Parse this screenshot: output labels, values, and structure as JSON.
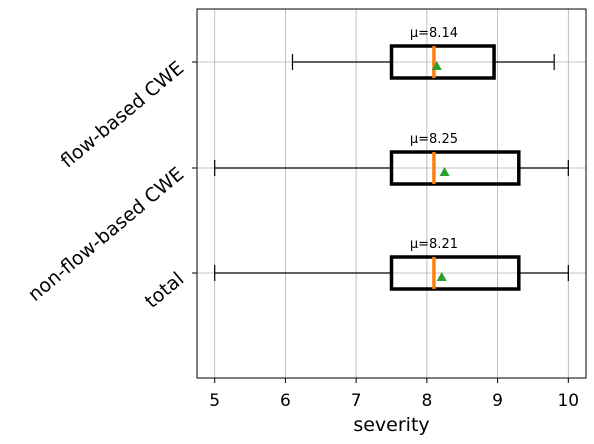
{
  "chart_data": {
    "type": "box",
    "orientation": "horizontal",
    "title": "",
    "xlabel": "severity",
    "ylabel": "",
    "xlim": [
      4.75,
      10.25
    ],
    "xticks": [
      5,
      6,
      7,
      8,
      9,
      10
    ],
    "xtick_labels": [
      "5",
      "6",
      "7",
      "8",
      "9",
      "10"
    ],
    "grid": true,
    "categories": [
      "flow-based CWE",
      "non-flow-based CWE",
      "total"
    ],
    "series": [
      {
        "category": "flow-based CWE",
        "whisker_low": 6.1,
        "q1": 7.5,
        "median": 8.1,
        "q3": 8.95,
        "whisker_high": 9.8,
        "mean": 8.14,
        "mean_label": "μ=8.14"
      },
      {
        "category": "non-flow-based CWE",
        "whisker_low": 5.0,
        "q1": 7.5,
        "median": 8.1,
        "q3": 9.3,
        "whisker_high": 10.0,
        "mean": 8.25,
        "mean_label": "μ=8.25"
      },
      {
        "category": "total",
        "whisker_low": 5.0,
        "q1": 7.5,
        "median": 8.1,
        "q3": 9.3,
        "whisker_high": 10.0,
        "mean": 8.21,
        "mean_label": "μ=8.21"
      }
    ],
    "colors": {
      "box": "#000000",
      "median": "#ff7f0e",
      "mean": "#2ca02c",
      "grid": "#b0b0b0",
      "whisker": "#000000"
    }
  }
}
